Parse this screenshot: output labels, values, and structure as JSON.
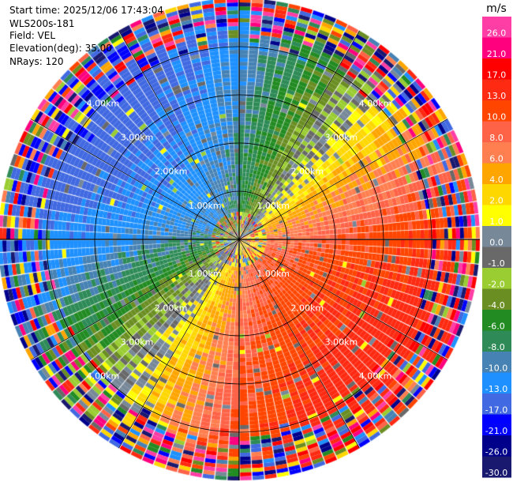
{
  "header": {
    "start_time": "Start time: 2025/12/06 17:43:04",
    "instrument": "WLS200s-181",
    "field": "Field: VEL",
    "elevation": "Elevation(deg): 35.00",
    "nrays": "NRays: 120"
  },
  "chart_data": {
    "type": "ppi",
    "field": "VEL",
    "elevation_deg": 35.0,
    "n_rays": 120,
    "range_rings_km": [
      1,
      2,
      3,
      4
    ],
    "ring_labels": [
      "1.00km",
      "2.00km",
      "3.00km",
      "4.00km"
    ],
    "max_range_km": 5.0,
    "colorbar": {
      "unit": "m/s",
      "ticks": [
        "26.0",
        "21.0",
        "17.0",
        "13.0",
        "10.0",
        "8.0",
        "6.0",
        "4.0",
        "2.0",
        "1.0",
        "0.0",
        "-1.0",
        "-2.0",
        "-4.0",
        "-6.0",
        "-8.0",
        "-10.0",
        "-13.0",
        "-17.0",
        "-21.0",
        "-26.0",
        "-30.0"
      ],
      "colors": [
        "#ff3ea5",
        "#ff007f",
        "#ff0000",
        "#ff2a12",
        "#ff4500",
        "#ff6347",
        "#ff7f50",
        "#ffa500",
        "#ffd700",
        "#ffff00",
        "#778899",
        "#696969",
        "#9acd32",
        "#6b8e23",
        "#228b22",
        "#2e8b57",
        "#4682b4",
        "#1e90ff",
        "#4169e1",
        "#0000ff",
        "#00008b",
        "#191970"
      ]
    },
    "pattern": {
      "min_velocity_azimuth_deg": 310,
      "max_velocity_azimuth_deg": 130,
      "amplitude_mps": 16
    }
  }
}
